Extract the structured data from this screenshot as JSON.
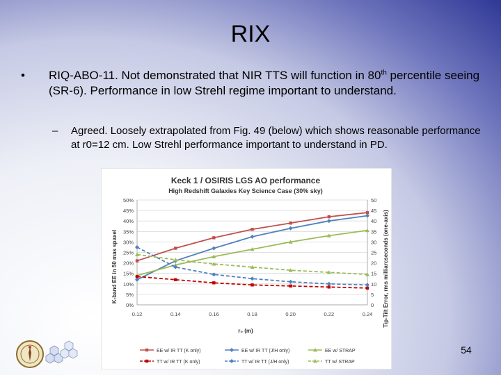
{
  "slide": {
    "title": "RIX",
    "bullet_mark": "•",
    "bullet_text_a": "RIQ-ABO-11. Not demonstrated that NIR TTS will function in 80",
    "bullet_sup": "th",
    "bullet_text_b": " percentile seeing (SR-6).  Performance in low Strehl regime important to understand.",
    "sub_mark": "–",
    "sub_text": "Agreed.  Loosely extrapolated from Fig. 49 (below) which shows reasonable performance at r0=12 cm.  Low Strehl performance important to understand in PD.",
    "page_number": "54"
  },
  "chart_data": {
    "type": "line",
    "title": "Keck 1 / OSIRIS LGS AO performance",
    "subtitle": "High Redshift Galaxies Key Science Case (30% sky)",
    "xlabel": "r₀ (m)",
    "ylabel_left": "K-band EE in 50 mas spaxel",
    "ylabel_right": "Tip-Tilt Error, rms milliarcseconds (one-axis)",
    "x": [
      0.12,
      0.14,
      0.16,
      0.18,
      0.2,
      0.22,
      0.24
    ],
    "x_ticks": [
      "0.12",
      "0.14",
      "0.16",
      "0.18",
      "0.20",
      "0.22",
      "0.24"
    ],
    "ylim_left": [
      0,
      50
    ],
    "ylim_right": [
      0,
      50
    ],
    "y_ticks_left": [
      "0%",
      "5%",
      "10%",
      "15%",
      "20%",
      "25%",
      "30%",
      "35%",
      "40%",
      "45%",
      "50%"
    ],
    "y_ticks_right": [
      "0",
      "5",
      "10",
      "15",
      "20",
      "25",
      "30",
      "35",
      "40",
      "45",
      "50"
    ],
    "grid": true,
    "legend_position": "bottom",
    "series": [
      {
        "name": "EE w/ IR TT (K only)",
        "color": "#c0504d",
        "dashed": false,
        "marker": "square",
        "values": [
          21,
          27,
          32,
          36,
          39,
          42,
          44
        ]
      },
      {
        "name": "EE w/ IR TT (J/H only)",
        "color": "#4f81bd",
        "dashed": false,
        "marker": "diamond",
        "values": [
          12,
          21,
          27,
          32.5,
          36.5,
          40,
          42.5
        ]
      },
      {
        "name": "EE w/ STRAP",
        "color": "#9bbb59",
        "dashed": false,
        "marker": "triangle",
        "values": [
          14,
          19,
          23,
          26.5,
          30,
          33,
          35.5
        ]
      },
      {
        "name": "TT w/ IR TT (K only)",
        "color": "#c00000",
        "dashed": true,
        "marker": "square",
        "values": [
          13.5,
          12,
          10.5,
          9.5,
          9,
          8.5,
          8
        ]
      },
      {
        "name": "TT w/ IR TT (J/H only)",
        "color": "#4f81bd",
        "dashed": true,
        "marker": "diamond",
        "values": [
          27.5,
          18,
          14.5,
          12.5,
          11,
          10,
          9.5
        ]
      },
      {
        "name": "TT w/ STRAP",
        "color": "#9bbb59",
        "dashed": true,
        "marker": "triangle",
        "values": [
          24,
          21.5,
          19.5,
          18,
          16.5,
          15.5,
          14.5
        ]
      }
    ]
  }
}
